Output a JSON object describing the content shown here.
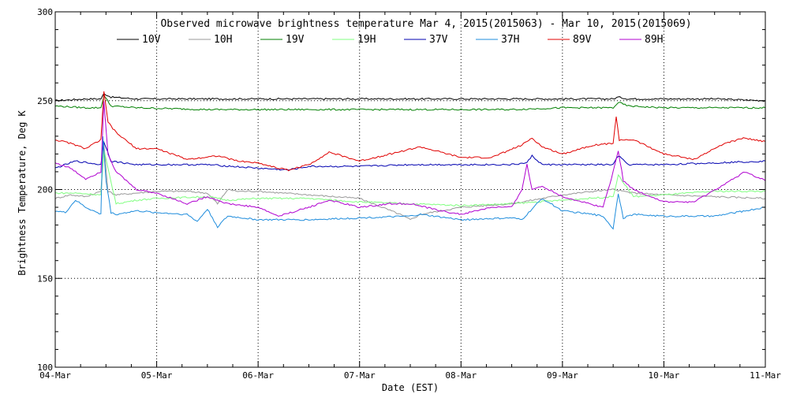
{
  "chart_data": {
    "type": "line",
    "title": "Observed microwave brightness temperature Mar  4, 2015(2015063) - Mar 10, 2015(2015069)",
    "xlabel": "Date (EST)",
    "ylabel": "Brightness Temperature, Deg K",
    "xlim": [
      0,
      7
    ],
    "ylim": [
      100,
      300
    ],
    "x_ticks": [
      {
        "value": 0,
        "label": "04-Mar"
      },
      {
        "value": 1,
        "label": "05-Mar"
      },
      {
        "value": 2,
        "label": "06-Mar"
      },
      {
        "value": 3,
        "label": "07-Mar"
      },
      {
        "value": 4,
        "label": "08-Mar"
      },
      {
        "value": 5,
        "label": "09-Mar"
      },
      {
        "value": 6,
        "label": "10-Mar"
      },
      {
        "value": 7,
        "label": "11-Mar"
      }
    ],
    "y_ticks": [
      {
        "value": 100,
        "label": "100"
      },
      {
        "value": 150,
        "label": "150"
      },
      {
        "value": 200,
        "label": "200"
      },
      {
        "value": 250,
        "label": "250"
      },
      {
        "value": 300,
        "label": "300"
      }
    ],
    "grid": "dotted",
    "legend_position": "top",
    "series": [
      {
        "name": "10V",
        "color": "#000000",
        "x": [
          0,
          0.3,
          0.45,
          0.48,
          0.55,
          0.8,
          1.5,
          2.5,
          3.5,
          4.5,
          5.0,
          5.5,
          5.55,
          5.65,
          6.0,
          6.5,
          7.0
        ],
        "y": [
          250,
          251,
          251,
          254,
          252,
          251,
          251,
          251,
          251,
          251,
          251,
          251,
          252,
          251,
          251,
          251,
          250
        ]
      },
      {
        "name": "10H",
        "color": "#999999",
        "x": [
          0,
          0.15,
          0.3,
          0.45,
          0.48,
          0.52,
          0.6,
          0.8,
          1.0,
          1.3,
          1.5,
          1.6,
          1.7,
          1.8,
          2.0,
          2.5,
          3.0,
          3.4,
          3.5,
          3.6,
          4.0,
          4.5,
          4.6,
          4.8,
          5.0,
          5.3,
          5.5,
          5.6,
          5.7,
          6.0,
          6.5,
          7.0
        ],
        "y": [
          195,
          197,
          196,
          199,
          225,
          199,
          197,
          198,
          199,
          199,
          198,
          192,
          200,
          199,
          199,
          197,
          195,
          186,
          183,
          186,
          190,
          192,
          193,
          195,
          197,
          199,
          200,
          199,
          198,
          197,
          196,
          195
        ]
      },
      {
        "name": "19V",
        "color": "#007F00",
        "x": [
          0,
          0.3,
          0.45,
          0.48,
          0.55,
          0.8,
          1.5,
          2.5,
          3.5,
          4.5,
          5.0,
          5.5,
          5.55,
          5.65,
          6.0,
          6.5,
          7.0
        ],
        "y": [
          247,
          246,
          246,
          253,
          247,
          246,
          245,
          245,
          245,
          245,
          246,
          246,
          249,
          247,
          246,
          246,
          246
        ]
      },
      {
        "name": "19H",
        "color": "#80FF80",
        "x": [
          0,
          0.2,
          0.45,
          0.48,
          0.6,
          0.8,
          1.0,
          1.5,
          1.7,
          2.0,
          2.5,
          3.0,
          3.5,
          4.0,
          4.5,
          5.0,
          5.5,
          5.55,
          5.7,
          6.0,
          6.5,
          7.0
        ],
        "y": [
          198,
          198,
          197,
          222,
          192,
          194,
          195,
          196,
          194,
          195,
          195,
          193,
          192,
          191,
          192,
          194,
          196,
          208,
          196,
          197,
          199,
          199
        ]
      },
      {
        "name": "37V",
        "color": "#0000B0",
        "x": [
          0,
          0.2,
          0.45,
          0.48,
          0.55,
          0.8,
          1.0,
          1.5,
          2.0,
          2.3,
          2.5,
          3.0,
          3.5,
          4.0,
          4.5,
          4.65,
          4.7,
          4.8,
          5.0,
          5.5,
          5.55,
          5.65,
          6.0,
          6.5,
          7.0
        ],
        "y": [
          212,
          216,
          214,
          227,
          216,
          214,
          214,
          214,
          212,
          211,
          213,
          213,
          214,
          214,
          214,
          215,
          219,
          214,
          214,
          214,
          219,
          214,
          214,
          215,
          216
        ]
      },
      {
        "name": "37H",
        "color": "#1E8CDC",
        "x": [
          0,
          0.1,
          0.2,
          0.3,
          0.45,
          0.47,
          0.5,
          0.55,
          0.6,
          0.8,
          1.0,
          1.3,
          1.4,
          1.5,
          1.6,
          1.7,
          2.0,
          2.5,
          3.0,
          3.5,
          3.6,
          4.0,
          4.5,
          4.6,
          4.8,
          5.0,
          5.3,
          5.4,
          5.5,
          5.55,
          5.6,
          5.7,
          6.0,
          6.5,
          7.0
        ],
        "y": [
          188,
          187,
          194,
          190,
          186,
          230,
          205,
          187,
          186,
          188,
          187,
          186,
          182,
          189,
          179,
          185,
          183,
          183,
          184,
          185,
          186,
          183,
          184,
          183,
          195,
          188,
          186,
          185,
          178,
          198,
          184,
          186,
          185,
          185,
          190
        ]
      },
      {
        "name": "89V",
        "color": "#E00000",
        "x": [
          0,
          0.15,
          0.3,
          0.45,
          0.48,
          0.52,
          0.6,
          0.8,
          1.0,
          1.3,
          1.6,
          1.8,
          2.0,
          2.2,
          2.3,
          2.5,
          2.7,
          3.0,
          3.3,
          3.6,
          4.0,
          4.3,
          4.6,
          4.7,
          4.8,
          5.0,
          5.3,
          5.5,
          5.53,
          5.56,
          5.7,
          6.0,
          6.3,
          6.6,
          6.8,
          7.0
        ],
        "y": [
          228,
          226,
          223,
          228,
          255,
          238,
          232,
          223,
          223,
          217,
          219,
          216,
          215,
          212,
          211,
          214,
          221,
          216,
          220,
          224,
          218,
          218,
          225,
          229,
          224,
          220,
          225,
          226,
          241,
          228,
          228,
          220,
          217,
          226,
          229,
          227
        ]
      },
      {
        "name": "89H",
        "color": "#B000D0",
        "x": [
          0,
          0.15,
          0.3,
          0.45,
          0.48,
          0.52,
          0.6,
          0.8,
          1.0,
          1.3,
          1.5,
          1.7,
          2.0,
          2.2,
          2.5,
          2.7,
          3.0,
          3.3,
          3.5,
          3.8,
          4.0,
          4.3,
          4.5,
          4.6,
          4.65,
          4.7,
          4.8,
          5.0,
          5.4,
          5.5,
          5.55,
          5.6,
          5.7,
          6.0,
          6.3,
          6.6,
          6.8,
          7.0
        ],
        "y": [
          215,
          212,
          206,
          210,
          250,
          220,
          210,
          200,
          198,
          192,
          196,
          192,
          190,
          185,
          190,
          194,
          190,
          192,
          192,
          188,
          186,
          190,
          190,
          200,
          214,
          200,
          202,
          196,
          190,
          210,
          222,
          205,
          200,
          193,
          193,
          203,
          210,
          205
        ]
      }
    ]
  }
}
